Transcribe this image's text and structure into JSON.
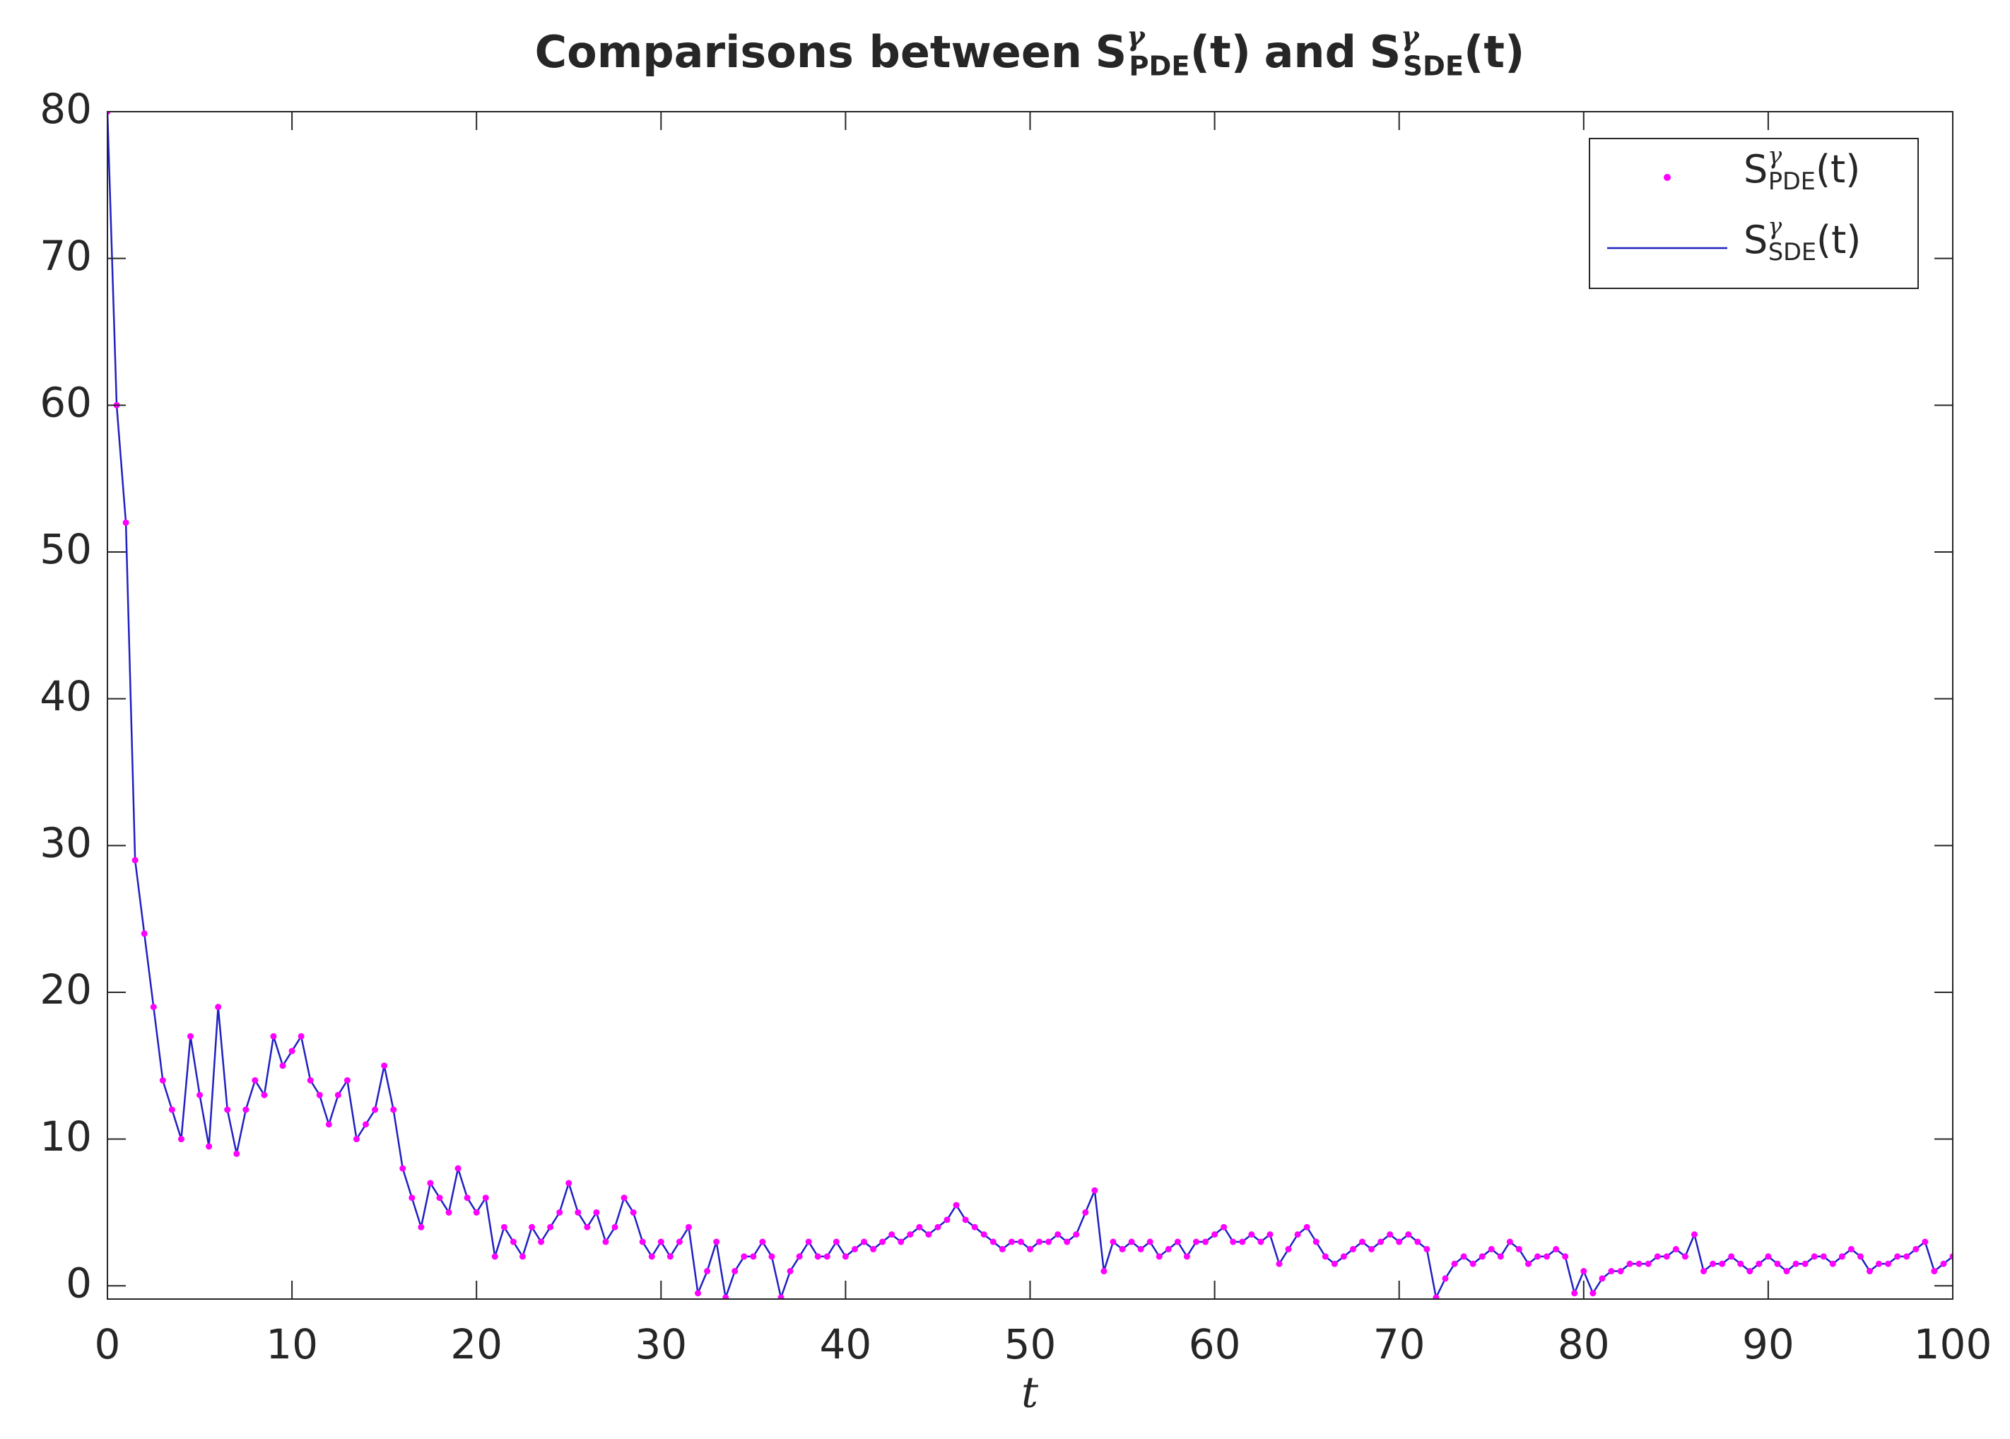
{
  "chart_data": {
    "type": "line-scatter",
    "title": "Comparisons between",
    "title_join": "and",
    "x_label": "t",
    "xlim": [
      0,
      100
    ],
    "xticks": [
      0,
      10,
      20,
      30,
      40,
      50,
      60,
      70,
      80,
      90,
      100
    ],
    "ylim": [
      -0.9,
      80
    ],
    "yticks": [
      0,
      10,
      20,
      30,
      40,
      50,
      60,
      70,
      80
    ],
    "grid": false,
    "legend": "top-right",
    "x": [
      0,
      0.5,
      1,
      1.5,
      2,
      2.5,
      3,
      3.5,
      4,
      4.5,
      5,
      5.5,
      6,
      6.5,
      7,
      7.5,
      8,
      8.5,
      9,
      9.5,
      10,
      10.5,
      11,
      11.5,
      12,
      12.5,
      13,
      13.5,
      14,
      14.5,
      15,
      15.5,
      16,
      16.5,
      17,
      17.5,
      18,
      18.5,
      19,
      19.5,
      20,
      20.5,
      21,
      21.5,
      22,
      22.5,
      23,
      23.5,
      24,
      24.5,
      25,
      25.5,
      26,
      26.5,
      27,
      27.5,
      28,
      28.5,
      29,
      29.5,
      30,
      30.5,
      31,
      31.5,
      32,
      32.5,
      33,
      33.5,
      34,
      34.5,
      35,
      35.5,
      36,
      36.5,
      37,
      37.5,
      38,
      38.5,
      39,
      39.5,
      40,
      40.5,
      41,
      41.5,
      42,
      42.5,
      43,
      43.5,
      44,
      44.5,
      45,
      45.5,
      46,
      46.5,
      47,
      47.5,
      48,
      48.5,
      49,
      49.5,
      50,
      50.5,
      51,
      51.5,
      52,
      52.5,
      53,
      53.5,
      54,
      54.5,
      55,
      55.5,
      56,
      56.5,
      57,
      57.5,
      58,
      58.5,
      59,
      59.5,
      60,
      60.5,
      61,
      61.5,
      62,
      62.5,
      63,
      63.5,
      64,
      64.5,
      65,
      65.5,
      66,
      66.5,
      67,
      67.5,
      68,
      68.5,
      69,
      69.5,
      70,
      70.5,
      71,
      71.5,
      72,
      72.5,
      73,
      73.5,
      74,
      74.5,
      75,
      75.5,
      76,
      76.5,
      77,
      77.5,
      78,
      78.5,
      79,
      79.5,
      80,
      80.5,
      81,
      81.5,
      82,
      82.5,
      83,
      83.5,
      84,
      84.5,
      85,
      85.5,
      86,
      86.5,
      87,
      87.5,
      88,
      88.5,
      89,
      89.5,
      90,
      90.5,
      91,
      91.5,
      92,
      92.5,
      93,
      93.5,
      94,
      94.5,
      95,
      95.5,
      96,
      96.5,
      97,
      97.5,
      98,
      98.5,
      99,
      99.5,
      100
    ],
    "series": [
      {
        "name": "S",
        "name_sup": "γ",
        "name_sub": "PDE",
        "name_tail": "(t)",
        "color": "#ff00ff",
        "marker": "dot",
        "values": [
          80,
          60,
          52,
          29,
          24,
          19,
          14,
          12,
          10,
          17,
          13,
          9.5,
          19,
          12,
          9,
          12,
          14,
          13,
          17,
          15,
          16,
          17,
          14,
          13,
          11,
          13,
          14,
          10,
          11,
          12,
          15,
          12,
          8,
          6,
          4,
          7,
          6,
          5,
          8,
          6,
          5,
          6,
          2,
          4,
          3,
          2,
          4,
          3,
          4,
          5,
          7,
          5,
          4,
          5,
          3,
          4,
          6,
          5,
          3,
          2,
          3,
          2,
          3,
          4,
          -0.5,
          1,
          3,
          -0.8,
          1,
          2,
          2,
          3,
          2,
          -0.8,
          1,
          2,
          3,
          2,
          2,
          3,
          2,
          2.5,
          3,
          2.5,
          3,
          3.5,
          3,
          3.5,
          4,
          3.5,
          4,
          4.5,
          5.5,
          4.5,
          4,
          3.5,
          3,
          2.5,
          3,
          3,
          2.5,
          3,
          3,
          3.5,
          3,
          3.5,
          5,
          6.5,
          1,
          3,
          2.5,
          3,
          2.5,
          3,
          2,
          2.5,
          3,
          2,
          3,
          3,
          3.5,
          4,
          3,
          3,
          3.5,
          3,
          3.5,
          1.5,
          2.5,
          3.5,
          4,
          3,
          2,
          1.5,
          2,
          2.5,
          3,
          2.5,
          3,
          3.5,
          3,
          3.5,
          3,
          2.5,
          -0.8,
          0.5,
          1.5,
          2,
          1.5,
          2,
          2.5,
          2,
          3,
          2.5,
          1.5,
          2,
          2,
          2.5,
          2,
          -0.5,
          1,
          -0.5,
          0.5,
          1,
          1,
          1.5,
          1.5,
          1.5,
          2,
          2,
          2.5,
          2,
          3.5,
          1,
          1.5,
          1.5,
          2,
          1.5,
          1,
          1.5,
          2,
          1.5,
          1,
          1.5,
          1.5,
          2,
          2,
          1.5,
          2,
          2.5,
          2,
          1,
          1.5,
          1.5,
          2,
          2,
          2.5,
          3,
          1,
          1.5,
          2
        ]
      },
      {
        "name": "S",
        "name_sup": "γ",
        "name_sub": "SDE",
        "name_tail": "(t)",
        "color": "#2020c0",
        "marker": "line",
        "values": [
          80,
          60,
          52,
          29,
          24,
          19,
          14,
          12,
          10,
          17,
          13,
          9.5,
          19,
          12,
          9,
          12,
          14,
          13,
          17,
          15,
          16,
          17,
          14,
          13,
          11,
          13,
          14,
          10,
          11,
          12,
          15,
          12,
          8,
          6,
          4,
          7,
          6,
          5,
          8,
          6,
          5,
          6,
          2,
          4,
          3,
          2,
          4,
          3,
          4,
          5,
          7,
          5,
          4,
          5,
          3,
          4,
          6,
          5,
          3,
          2,
          3,
          2,
          3,
          4,
          -0.5,
          1,
          3,
          -0.8,
          1,
          2,
          2,
          3,
          2,
          -0.8,
          1,
          2,
          3,
          2,
          2,
          3,
          2,
          2.5,
          3,
          2.5,
          3,
          3.5,
          3,
          3.5,
          4,
          3.5,
          4,
          4.5,
          5.5,
          4.5,
          4,
          3.5,
          3,
          2.5,
          3,
          3,
          2.5,
          3,
          3,
          3.5,
          3,
          3.5,
          5,
          6.5,
          1,
          3,
          2.5,
          3,
          2.5,
          3,
          2,
          2.5,
          3,
          2,
          3,
          3,
          3.5,
          4,
          3,
          3,
          3.5,
          3,
          3.5,
          1.5,
          2.5,
          3.5,
          4,
          3,
          2,
          1.5,
          2,
          2.5,
          3,
          2.5,
          3,
          3.5,
          3,
          3.5,
          3,
          2.5,
          -0.8,
          0.5,
          1.5,
          2,
          1.5,
          2,
          2.5,
          2,
          3,
          2.5,
          1.5,
          2,
          2,
          2.5,
          2,
          -0.5,
          1,
          -0.5,
          0.5,
          1,
          1,
          1.5,
          1.5,
          1.5,
          2,
          2,
          2.5,
          2,
          3.5,
          1,
          1.5,
          1.5,
          2,
          1.5,
          1,
          1.5,
          2,
          1.5,
          1,
          1.5,
          1.5,
          2,
          2,
          1.5,
          2,
          2.5,
          2,
          1,
          1.5,
          1.5,
          2,
          2,
          2.5,
          3,
          1,
          1.5,
          2
        ]
      }
    ]
  }
}
